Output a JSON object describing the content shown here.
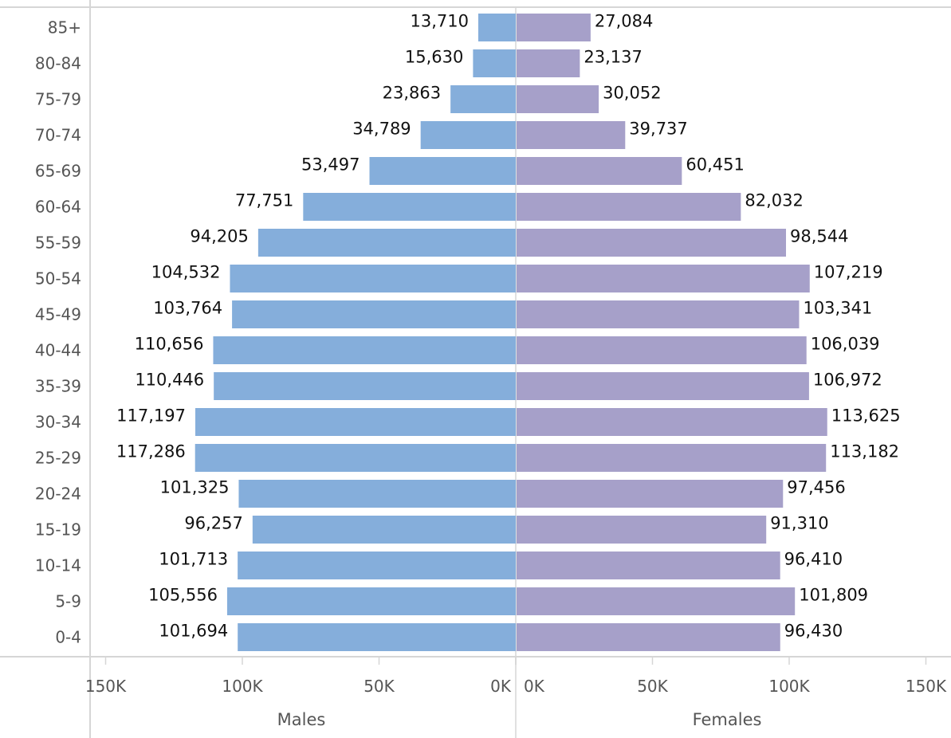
{
  "chart_data": {
    "type": "bar",
    "categories": [
      "85+",
      "80-84",
      "75-79",
      "70-74",
      "65-69",
      "60-64",
      "55-59",
      "50-54",
      "45-49",
      "40-44",
      "35-39",
      "30-34",
      "25-29",
      "20-24",
      "15-19",
      "10-14",
      "5-9",
      "0-4"
    ],
    "series": [
      {
        "name": "Males",
        "values": [
          13710,
          15630,
          23863,
          34789,
          53497,
          77751,
          94205,
          104532,
          103764,
          110656,
          110446,
          117197,
          117286,
          101325,
          96257,
          101713,
          105556,
          101694
        ],
        "labels": [
          "13,710",
          "15,630",
          "23,863",
          "34,789",
          "53,497",
          "77,751",
          "94,205",
          "104,532",
          "103,764",
          "110,656",
          "110,446",
          "117,197",
          "117,286",
          "101,325",
          "96,257",
          "101,713",
          "105,556",
          "101,694"
        ],
        "color": "#85aedb"
      },
      {
        "name": "Females",
        "values": [
          27084,
          23137,
          30052,
          39737,
          60451,
          82032,
          98544,
          107219,
          103341,
          106039,
          106972,
          113625,
          113182,
          97456,
          91310,
          96410,
          101809,
          96430
        ],
        "labels": [
          "27,084",
          "23,137",
          "30,052",
          "39,737",
          "60,451",
          "82,032",
          "98,544",
          "107,219",
          "103,341",
          "106,039",
          "106,972",
          "113,625",
          "113,182",
          "97,456",
          "91,310",
          "96,410",
          "101,809",
          "96,430"
        ],
        "color": "#a6a0c9"
      }
    ],
    "axes": {
      "males": {
        "title": "Males",
        "ticks": [
          150000,
          100000,
          50000,
          0
        ],
        "tick_labels": [
          "150K",
          "100K",
          "50K",
          "0K"
        ],
        "range": [
          150000,
          0
        ]
      },
      "females": {
        "title": "Females",
        "ticks": [
          0,
          50000,
          100000,
          150000
        ],
        "tick_labels": [
          "0K",
          "50K",
          "100K",
          "150K"
        ],
        "range": [
          0,
          150000
        ]
      }
    },
    "grid": false,
    "legend": "none"
  }
}
